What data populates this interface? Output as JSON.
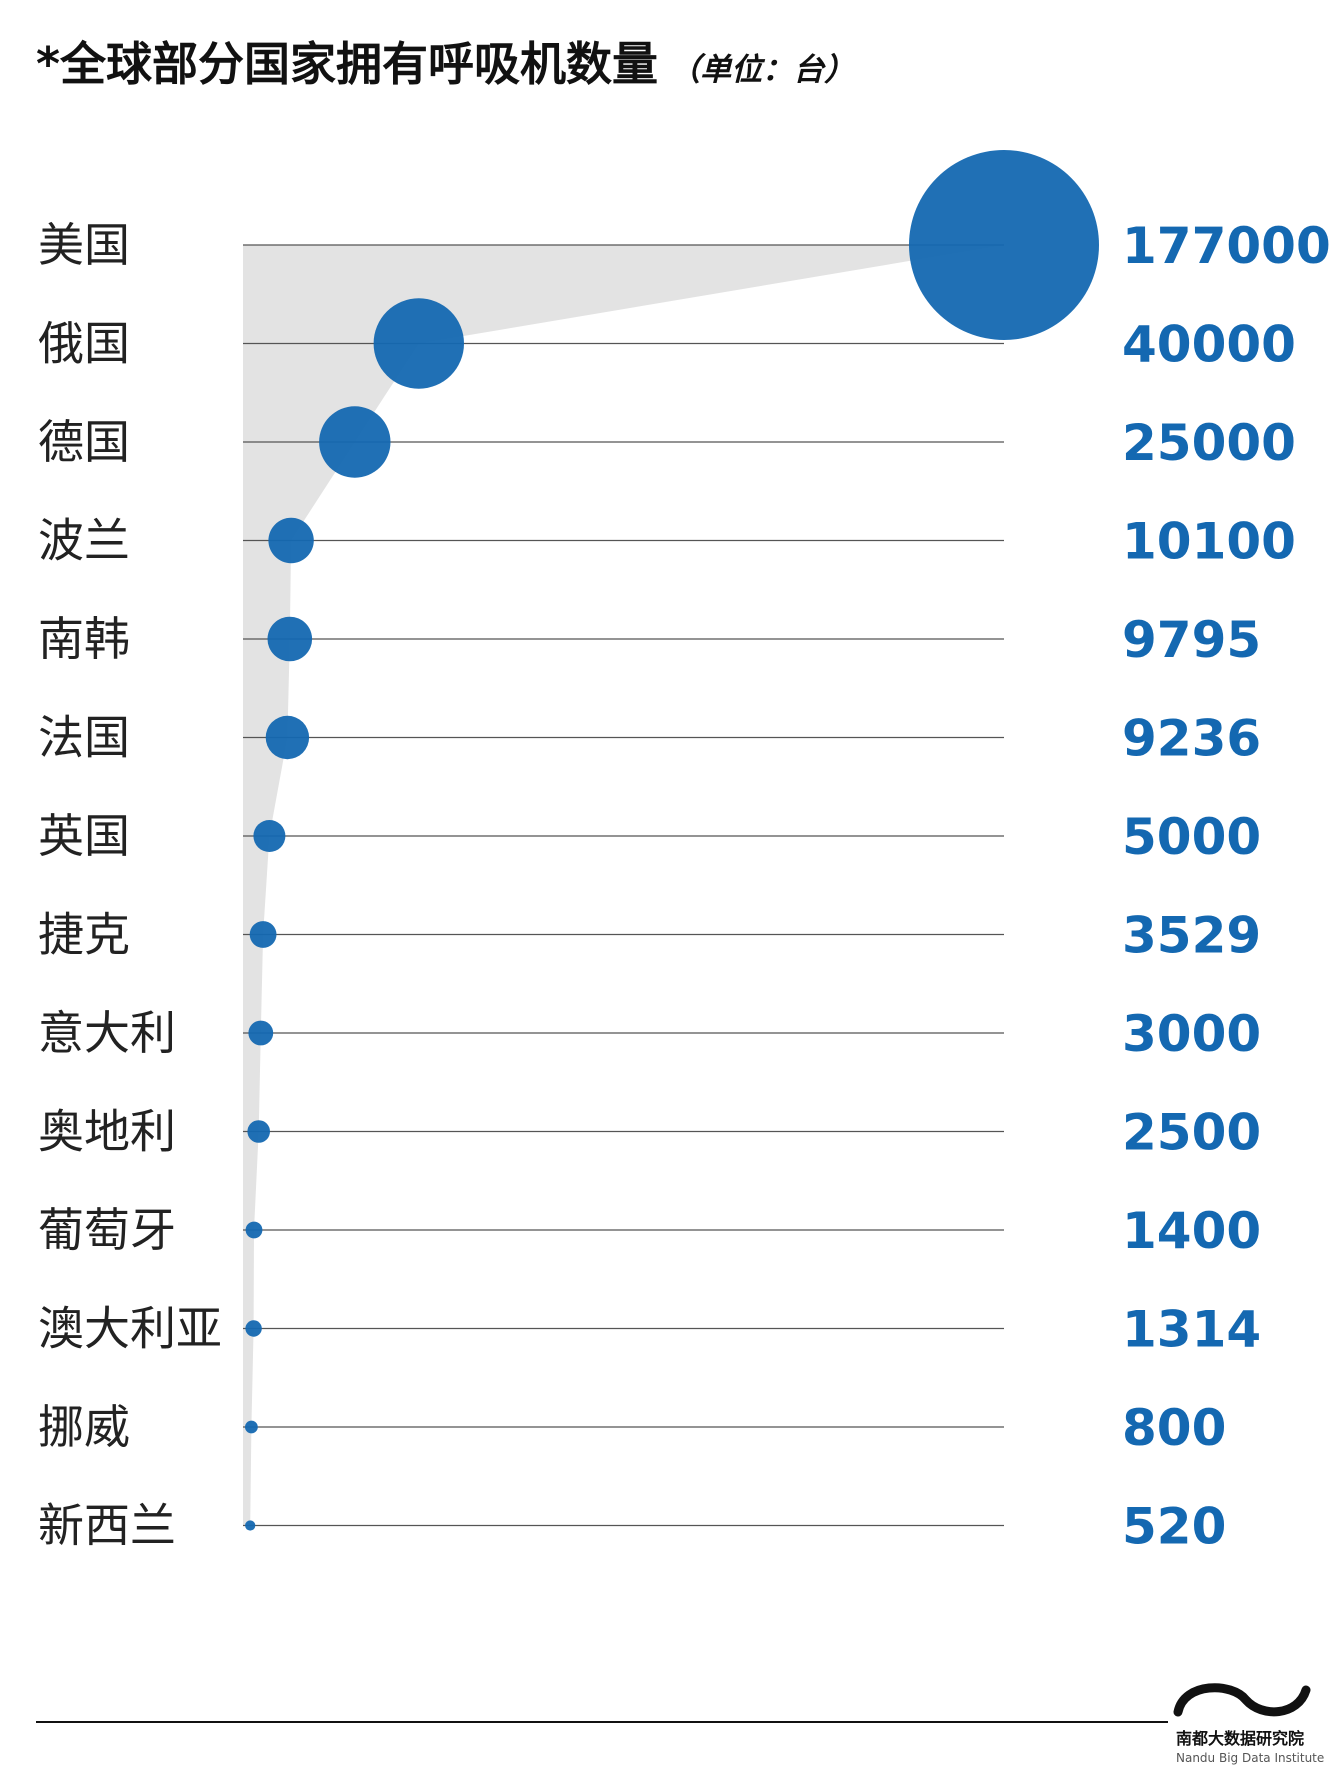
{
  "chart_data": {
    "type": "bubble",
    "title": "*全球部分国家拥有呼吸机数量",
    "unit_note": "（单位：台）",
    "categories": [
      "美国",
      "俄国",
      "德国",
      "波兰",
      "南韩",
      "法国",
      "英国",
      "捷克",
      "意大利",
      "奥地利",
      "葡萄牙",
      "澳大利亚",
      "挪威",
      "新西兰"
    ],
    "values": [
      177000,
      40000,
      25000,
      10100,
      9795,
      9236,
      5000,
      3529,
      3000,
      2500,
      1400,
      1314,
      800,
      520
    ],
    "value_labels": [
      "177000",
      "40000",
      "25000",
      "10100",
      "9795",
      "9236",
      "5000",
      "3529",
      "3000",
      "2500",
      "1400",
      "1314",
      "800",
      "520"
    ],
    "bubble_color": "#1468b1",
    "area_color": "#e3e3e3",
    "line_color": "#555555"
  },
  "footer": {
    "logo_cn": "南都大数据研究院",
    "logo_en": "Nandu Big Data Institute"
  }
}
